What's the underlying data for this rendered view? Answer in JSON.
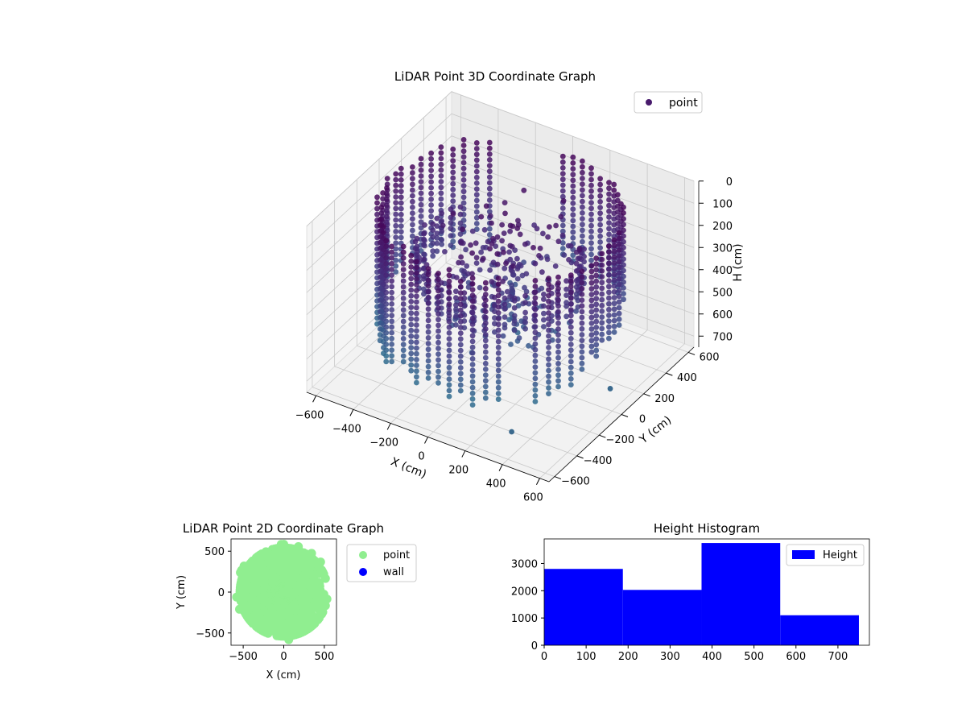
{
  "chart_data": [
    {
      "type": "scatter",
      "projection": "3d",
      "title": "LiDAR Point 3D Coordinate Graph",
      "xlabel": "X (cm)",
      "ylabel": "Y (cm)",
      "zlabel": "H (cm)",
      "xticks": [
        -600,
        -400,
        -200,
        0,
        200,
        400,
        600
      ],
      "yticks": [
        -600,
        -400,
        -200,
        0,
        200,
        400,
        600
      ],
      "zticks": [
        0,
        100,
        200,
        300,
        400,
        500,
        600,
        700
      ],
      "xlim": [
        -650,
        650
      ],
      "ylim": [
        -650,
        650
      ],
      "zlim": [
        750,
        0
      ],
      "zinverted": true,
      "grid": true,
      "colormap": "viridis",
      "legend": {
        "position": "top-right",
        "entries": [
          {
            "label": "point",
            "color": "#481a6c"
          }
        ]
      },
      "outliers": [
        {
          "x": 300,
          "y": -400,
          "h": 750
        },
        {
          "x": 500,
          "y": 150,
          "h": 750
        }
      ]
    },
    {
      "type": "scatter",
      "title": "LiDAR Point 2D Coordinate Graph",
      "xlabel": "X (cm)",
      "ylabel": "Y (cm)",
      "xticks": [
        -500,
        0,
        500
      ],
      "yticks": [
        -500,
        0,
        500
      ],
      "xlim": [
        -650,
        650
      ],
      "ylim": [
        -650,
        650
      ],
      "series": [
        {
          "name": "point",
          "color": "#90ee90"
        },
        {
          "name": "wall",
          "color": "#0000ff"
        }
      ],
      "legend": {
        "position": "outside-right",
        "entries": [
          {
            "label": "point",
            "color": "#90ee90"
          },
          {
            "label": "wall",
            "color": "#0000ff"
          }
        ]
      }
    },
    {
      "type": "bar",
      "subtype": "histogram",
      "title": "Height Histogram",
      "xticks": [
        0,
        100,
        200,
        300,
        400,
        500,
        600,
        700
      ],
      "yticks": [
        0,
        1000,
        2000,
        3000
      ],
      "xlim": [
        0,
        775
      ],
      "ylim": [
        0,
        3900
      ],
      "bins": [
        {
          "from": 0,
          "to": 187.5,
          "value": 2800
        },
        {
          "from": 187.5,
          "to": 375,
          "value": 2030
        },
        {
          "from": 375,
          "to": 562.5,
          "value": 3750
        },
        {
          "from": 562.5,
          "to": 750,
          "value": 1100
        }
      ],
      "color": "#0000ff",
      "legend": {
        "position": "top-right",
        "entries": [
          {
            "label": "Height",
            "color": "#0000ff"
          }
        ]
      }
    }
  ]
}
